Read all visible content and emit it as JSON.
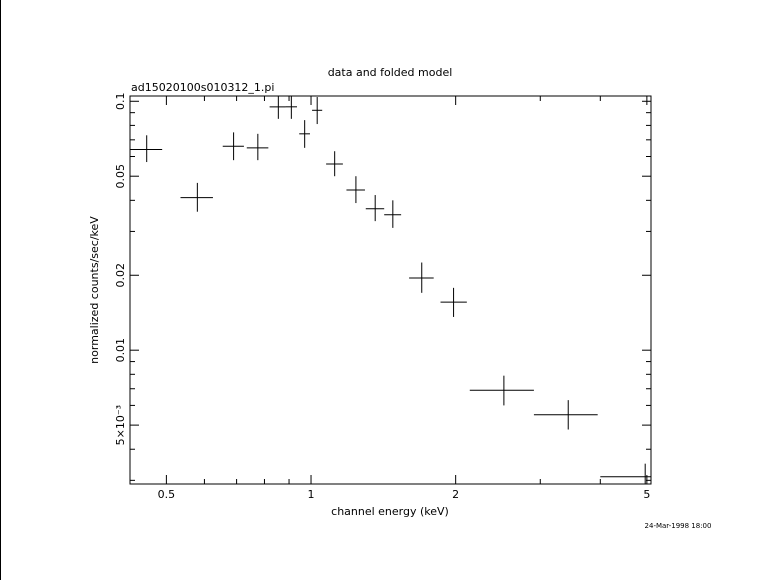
{
  "chart_data": {
    "type": "scatter",
    "title": "data and folded model",
    "subtitle": "ad15020100s010312_1.pi",
    "xlabel": "channel energy (keV)",
    "ylabel": "normalized counts/sec/keV",
    "timestamp": "24-Mar-1998 18:00",
    "x_scale": "log",
    "y_scale": "log",
    "xlim": [
      0.42,
      5.1
    ],
    "ylim": [
      0.0029,
      0.105
    ],
    "x_ticks": [
      {
        "value": 0.5,
        "label": "0.5"
      },
      {
        "value": 1,
        "label": "1"
      },
      {
        "value": 2,
        "label": "2"
      },
      {
        "value": 5,
        "label": "5"
      }
    ],
    "y_ticks": [
      {
        "value": 0.005,
        "label": "5×10⁻³"
      },
      {
        "value": 0.01,
        "label": "0.01"
      },
      {
        "value": 0.02,
        "label": "0.02"
      },
      {
        "value": 0.05,
        "label": "0.05"
      },
      {
        "value": 0.1,
        "label": "0.1"
      }
    ],
    "series": [
      {
        "color": "#000000",
        "points": [
          {
            "x": 0.455,
            "xlo": 0.42,
            "xhi": 0.49,
            "y": 0.064,
            "ylo": 0.057,
            "yhi": 0.073
          },
          {
            "x": 0.58,
            "xlo": 0.535,
            "xhi": 0.625,
            "y": 0.041,
            "ylo": 0.036,
            "yhi": 0.047
          },
          {
            "x": 0.69,
            "xlo": 0.655,
            "xhi": 0.725,
            "y": 0.066,
            "ylo": 0.058,
            "yhi": 0.075
          },
          {
            "x": 0.775,
            "xlo": 0.735,
            "xhi": 0.815,
            "y": 0.065,
            "ylo": 0.058,
            "yhi": 0.074
          },
          {
            "x": 0.855,
            "xlo": 0.82,
            "xhi": 0.885,
            "y": 0.095,
            "ylo": 0.085,
            "yhi": 0.105
          },
          {
            "x": 0.91,
            "xlo": 0.885,
            "xhi": 0.935,
            "y": 0.095,
            "ylo": 0.085,
            "yhi": 0.105
          },
          {
            "x": 0.97,
            "xlo": 0.945,
            "xhi": 0.995,
            "y": 0.074,
            "ylo": 0.065,
            "yhi": 0.084
          },
          {
            "x": 1.03,
            "xlo": 1.005,
            "xhi": 1.055,
            "y": 0.092,
            "ylo": 0.081,
            "yhi": 0.104
          },
          {
            "x": 1.12,
            "xlo": 1.075,
            "xhi": 1.165,
            "y": 0.056,
            "ylo": 0.05,
            "yhi": 0.063
          },
          {
            "x": 1.24,
            "xlo": 1.185,
            "xhi": 1.295,
            "y": 0.044,
            "ylo": 0.039,
            "yhi": 0.05
          },
          {
            "x": 1.36,
            "xlo": 1.3,
            "xhi": 1.42,
            "y": 0.037,
            "ylo": 0.033,
            "yhi": 0.042
          },
          {
            "x": 1.48,
            "xlo": 1.42,
            "xhi": 1.54,
            "y": 0.035,
            "ylo": 0.031,
            "yhi": 0.04
          },
          {
            "x": 1.7,
            "xlo": 1.6,
            "xhi": 1.8,
            "y": 0.0195,
            "ylo": 0.017,
            "yhi": 0.0225
          },
          {
            "x": 1.98,
            "xlo": 1.86,
            "xhi": 2.11,
            "y": 0.0156,
            "ylo": 0.0136,
            "yhi": 0.0178
          },
          {
            "x": 2.52,
            "xlo": 2.14,
            "xhi": 2.91,
            "y": 0.0069,
            "ylo": 0.006,
            "yhi": 0.0079
          },
          {
            "x": 3.43,
            "xlo": 2.91,
            "xhi": 3.95,
            "y": 0.0055,
            "ylo": 0.0048,
            "yhi": 0.0063
          },
          {
            "x": 4.96,
            "xlo": 4.0,
            "xhi": 5.1,
            "y": 0.0031,
            "ylo": 0.0027,
            "yhi": 0.0035
          }
        ]
      }
    ]
  }
}
